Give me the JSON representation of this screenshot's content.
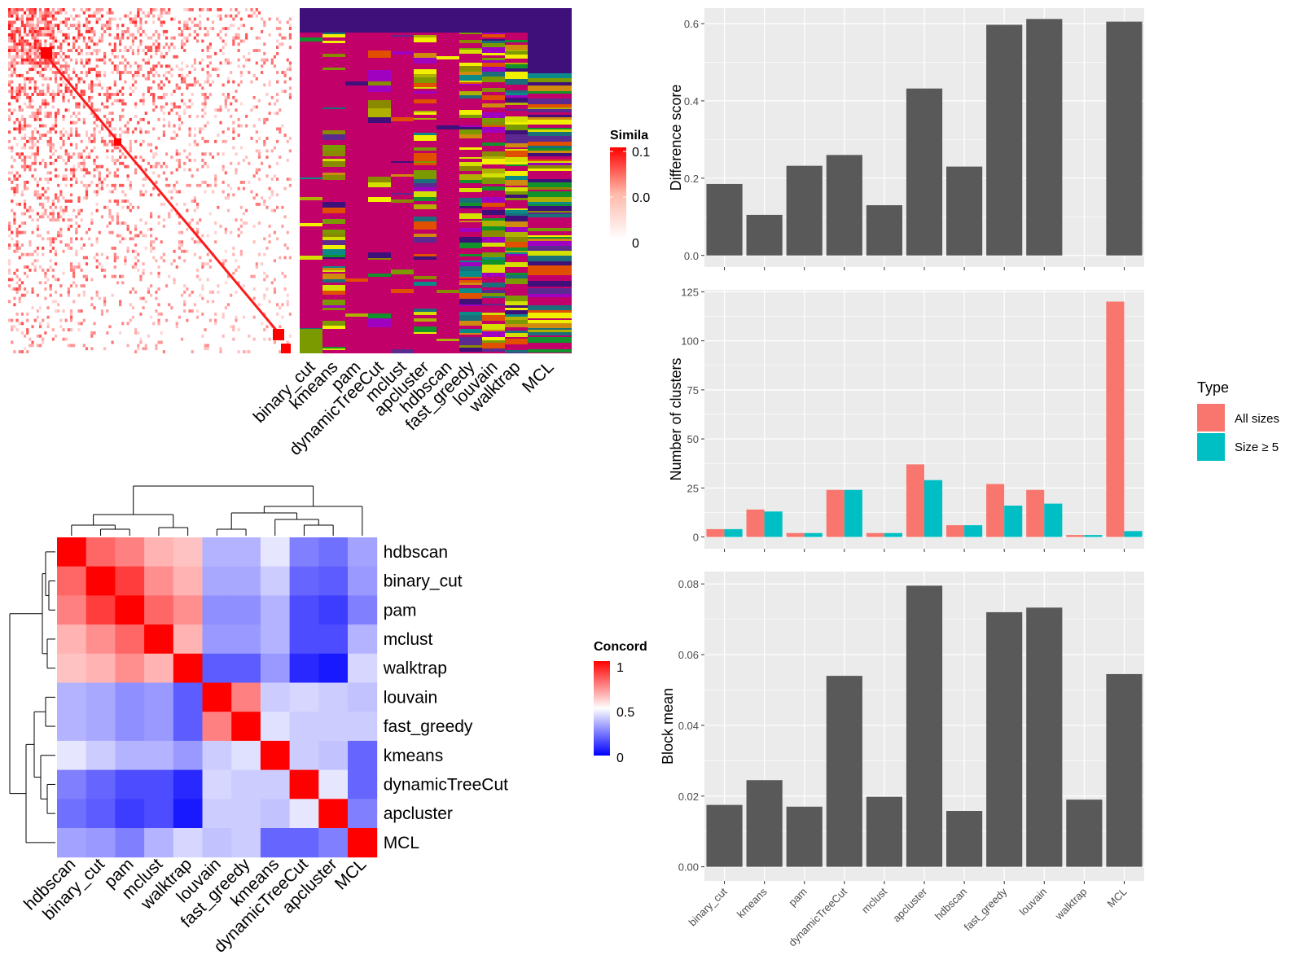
{
  "methods": [
    "binary_cut",
    "kmeans",
    "pam",
    "dynamicTreeCut",
    "mclust",
    "apcluster",
    "hdbscan",
    "fast_greedy",
    "louvain",
    "walktrap",
    "MCL"
  ],
  "colors": {
    "bar_gray": "#595959",
    "panel_bg": "#ebebeb",
    "all_sizes": "#F8766D",
    "size_ge5": "#00BFC4",
    "heat_high": "#ff0000",
    "heat_mid": "#ffffff",
    "heat_low": "#0000ff"
  },
  "similarity_legend": {
    "title": "Simila",
    "labels": [
      "0.1",
      "0.0",
      "0"
    ]
  },
  "concordance_legend": {
    "title": "Concord",
    "labels": [
      "1",
      "0.5",
      "0"
    ]
  },
  "type_legend": {
    "title": "Type",
    "items": [
      "All sizes",
      "Size ≥ 5"
    ]
  },
  "concordance_order": [
    "hdbscan",
    "binary_cut",
    "pam",
    "mclust",
    "walktrap",
    "louvain",
    "fast_greedy",
    "kmeans",
    "dynamicTreeCut",
    "apcluster",
    "MCL"
  ],
  "chart_data": [
    {
      "type": "heatmap",
      "title": "",
      "description_of": "similarity matrix with cluster annotation columns",
      "legend_title": "Simila",
      "value_range": [
        0,
        0.1
      ],
      "annotation_columns": [
        "binary_cut",
        "kmeans",
        "pam",
        "dynamicTreeCut",
        "mclust",
        "apcluster",
        "hdbscan",
        "fast_greedy",
        "louvain",
        "walktrap",
        "MCL"
      ]
    },
    {
      "type": "heatmap",
      "title": "",
      "legend_title": "Concord",
      "value_range": [
        0,
        1
      ],
      "rows": [
        "hdbscan",
        "binary_cut",
        "pam",
        "mclust",
        "walktrap",
        "louvain",
        "fast_greedy",
        "kmeans",
        "dynamicTreeCut",
        "apcluster",
        "MCL"
      ],
      "columns": [
        "hdbscan",
        "binary_cut",
        "pam",
        "mclust",
        "walktrap",
        "louvain",
        "fast_greedy",
        "kmeans",
        "dynamicTreeCut",
        "apcluster",
        "MCL"
      ],
      "values": [
        [
          1.0,
          0.8,
          0.75,
          0.65,
          0.62,
          0.35,
          0.35,
          0.45,
          0.25,
          0.22,
          0.32
        ],
        [
          0.8,
          1.0,
          0.88,
          0.72,
          0.65,
          0.33,
          0.33,
          0.4,
          0.2,
          0.18,
          0.3
        ],
        [
          0.75,
          0.88,
          1.0,
          0.8,
          0.72,
          0.28,
          0.28,
          0.35,
          0.15,
          0.12,
          0.25
        ],
        [
          0.65,
          0.72,
          0.8,
          1.0,
          0.65,
          0.3,
          0.3,
          0.35,
          0.15,
          0.15,
          0.35
        ],
        [
          0.62,
          0.65,
          0.72,
          0.65,
          1.0,
          0.18,
          0.18,
          0.3,
          0.08,
          0.05,
          0.42
        ],
        [
          0.35,
          0.33,
          0.28,
          0.3,
          0.18,
          1.0,
          0.75,
          0.4,
          0.42,
          0.4,
          0.38
        ],
        [
          0.35,
          0.33,
          0.28,
          0.3,
          0.18,
          0.75,
          1.0,
          0.44,
          0.4,
          0.4,
          0.4
        ],
        [
          0.45,
          0.4,
          0.35,
          0.35,
          0.3,
          0.4,
          0.44,
          1.0,
          0.4,
          0.38,
          0.2
        ],
        [
          0.25,
          0.2,
          0.15,
          0.15,
          0.08,
          0.42,
          0.4,
          0.4,
          1.0,
          0.45,
          0.2
        ],
        [
          0.22,
          0.18,
          0.12,
          0.15,
          0.05,
          0.4,
          0.4,
          0.38,
          0.45,
          1.0,
          0.25
        ],
        [
          0.32,
          0.3,
          0.25,
          0.35,
          0.42,
          0.38,
          0.4,
          0.2,
          0.2,
          0.25,
          1.0
        ]
      ]
    },
    {
      "type": "bar",
      "title": "",
      "xlabel": "",
      "ylabel": "Difference score",
      "categories": [
        "binary_cut",
        "kmeans",
        "pam",
        "dynamicTreeCut",
        "mclust",
        "apcluster",
        "hdbscan",
        "fast_greedy",
        "louvain",
        "walktrap",
        "MCL"
      ],
      "values": [
        0.185,
        0.105,
        0.232,
        0.26,
        0.13,
        0.432,
        0.23,
        0.597,
        0.612,
        0.0,
        0.605
      ],
      "ylim": [
        -0.03,
        0.64
      ],
      "yticks": [
        0.0,
        0.2,
        0.4,
        0.6
      ],
      "ytick_labels": [
        "0.0",
        "0.2",
        "0.4",
        "0.6"
      ]
    },
    {
      "type": "bar",
      "title": "",
      "xlabel": "",
      "ylabel": "Number of clusters",
      "categories": [
        "binary_cut",
        "kmeans",
        "pam",
        "dynamicTreeCut",
        "mclust",
        "apcluster",
        "hdbscan",
        "fast_greedy",
        "louvain",
        "walktrap",
        "MCL"
      ],
      "series": [
        {
          "name": "All sizes",
          "values": [
            4,
            14,
            2,
            24,
            2,
            37,
            6,
            27,
            24,
            1,
            120
          ]
        },
        {
          "name": "Size ≥ 5",
          "values": [
            4,
            13,
            2,
            24,
            2,
            29,
            6,
            16,
            17,
            1,
            3
          ]
        }
      ],
      "ylim": [
        -6,
        126
      ],
      "yticks": [
        0,
        25,
        50,
        75,
        100,
        125
      ],
      "ytick_labels": [
        "0",
        "25",
        "50",
        "75",
        "100",
        "125"
      ],
      "legend": "right"
    },
    {
      "type": "bar",
      "title": "",
      "xlabel": "",
      "ylabel": "Block mean",
      "categories": [
        "binary_cut",
        "kmeans",
        "pam",
        "dynamicTreeCut",
        "mclust",
        "apcluster",
        "hdbscan",
        "fast_greedy",
        "louvain",
        "walktrap",
        "MCL"
      ],
      "values": [
        0.0175,
        0.0245,
        0.017,
        0.054,
        0.0198,
        0.0795,
        0.0158,
        0.072,
        0.0733,
        0.019,
        0.0545
      ],
      "ylim": [
        -0.004,
        0.0835
      ],
      "yticks": [
        0.0,
        0.02,
        0.04,
        0.06,
        0.08
      ],
      "ytick_labels": [
        "0.00",
        "0.02",
        "0.04",
        "0.06",
        "0.08"
      ]
    }
  ]
}
